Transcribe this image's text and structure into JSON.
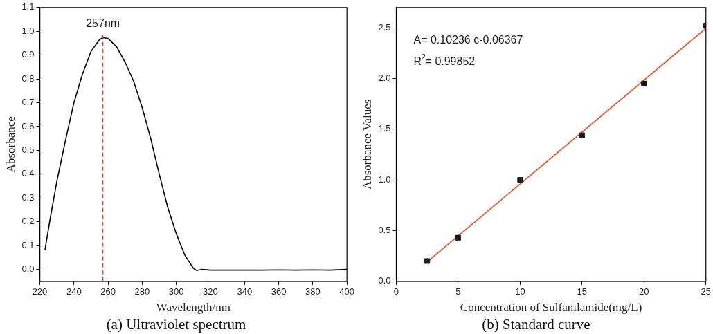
{
  "chart_data": [
    {
      "type": "line",
      "title": "(a) Ultraviolet spectrum",
      "xlabel": "Wavelength/nm",
      "ylabel": "Absorbance",
      "x": [
        223,
        226,
        230,
        235,
        240,
        245,
        250,
        255,
        257,
        260,
        265,
        270,
        275,
        280,
        285,
        290,
        295,
        300,
        305,
        310,
        312,
        315,
        320,
        330,
        340,
        350,
        360,
        370,
        380,
        390,
        400
      ],
      "series": [
        {
          "color": "#000000",
          "values": [
            0.08,
            0.21,
            0.37,
            0.54,
            0.7,
            0.82,
            0.915,
            0.965,
            0.973,
            0.97,
            0.935,
            0.87,
            0.79,
            0.68,
            0.55,
            0.4,
            0.26,
            0.15,
            0.06,
            0.005,
            -0.005,
            0.0,
            -0.003,
            -0.003,
            -0.003,
            -0.003,
            -0.002,
            -0.003,
            -0.002,
            -0.003,
            0.0
          ]
        }
      ],
      "xlim": [
        220,
        400
      ],
      "xticks": [
        220,
        240,
        260,
        280,
        300,
        320,
        340,
        360,
        380,
        400
      ],
      "ylim": [
        -0.05,
        1.1
      ],
      "yticks": [
        {
          "value": 0,
          "label": "0.0"
        },
        0.1,
        0.2,
        0.3,
        0.4,
        0.5,
        0.6,
        0.7,
        0.8,
        0.9,
        {
          "value": 1,
          "label": "1.0"
        },
        1.1
      ],
      "ref_lines": [
        {
          "axis": "x",
          "value": 257,
          "label": "257nm",
          "color": "#e8321e",
          "line_style": "dashed"
        }
      ],
      "grid": false,
      "legend": false
    },
    {
      "type": "scatter",
      "title": "(b) Standard curve",
      "xlabel": "Concentration of Sulfanilamide(mg/L)",
      "ylabel": "Absorbance Values",
      "x": [
        2.5,
        5,
        10,
        15,
        20,
        25
      ],
      "series": [
        {
          "color": "#1a1a1a",
          "marker": "square",
          "values": [
            0.2,
            0.43,
            1.0,
            1.44,
            1.95,
            2.52
          ]
        },
        {
          "type": "line",
          "color": "#f04a1e",
          "x": [
            2.5,
            25
          ],
          "values": [
            0.192,
            2.495
          ]
        }
      ],
      "annotations": [
        "A= 0.10236 c-0.06367",
        "R$^{2}$= 0.99852"
      ],
      "xlim": [
        0,
        25
      ],
      "xticks": [
        0,
        5,
        10,
        15,
        20,
        25
      ],
      "ylim": [
        0,
        2.7
      ],
      "yticks": [
        {
          "value": 0,
          "label": "0.0"
        },
        0.5,
        {
          "value": 1,
          "label": "1.0"
        },
        1.5,
        {
          "value": 2,
          "label": "2.0"
        },
        2.5
      ],
      "grid": false,
      "legend": false
    }
  ]
}
